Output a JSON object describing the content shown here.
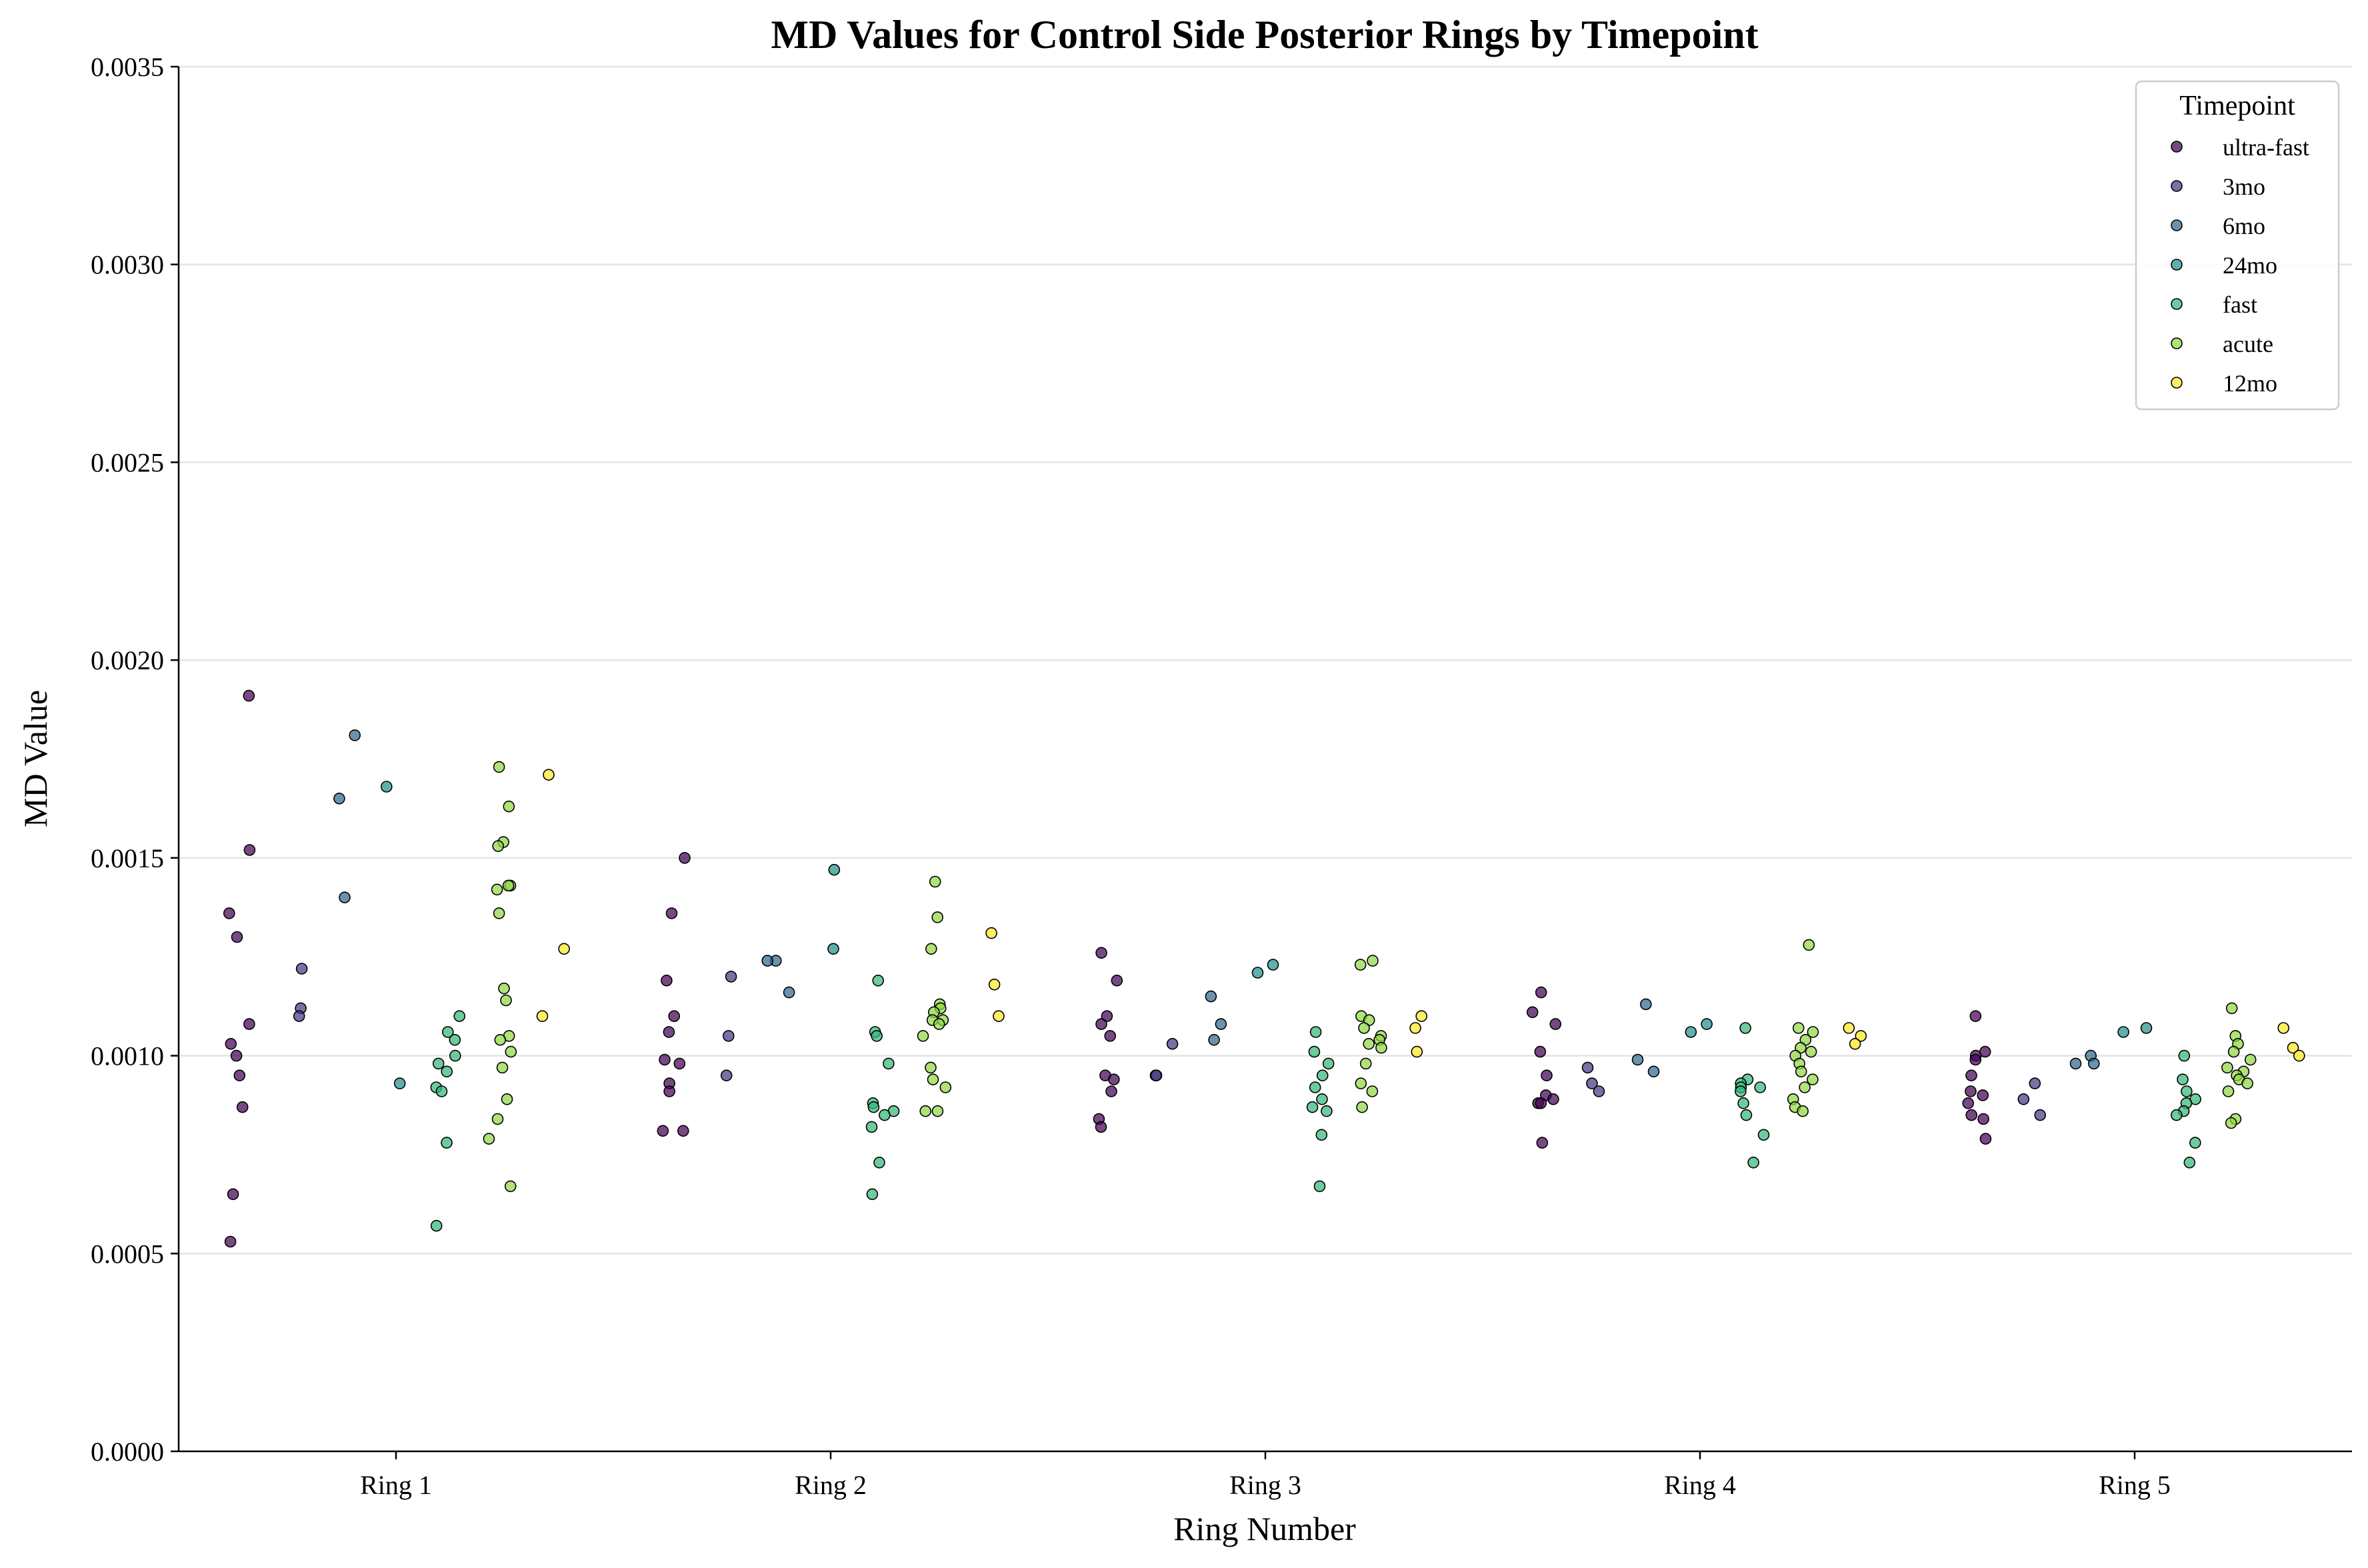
{
  "chart_data": {
    "type": "scatter",
    "title": "MD Values for Control Side Posterior Rings by Timepoint",
    "xlabel": "Ring Number",
    "ylabel": "MD Value",
    "categories": [
      "Ring 1",
      "Ring 2",
      "Ring 3",
      "Ring 4",
      "Ring 5"
    ],
    "ylim": [
      0,
      0.0035
    ],
    "yticks": [
      "0.0000",
      "0.0005",
      "0.0010",
      "0.0015",
      "0.0020",
      "0.0025",
      "0.0030",
      "0.0035"
    ],
    "grid": "horizontal",
    "legend": {
      "title": "Timepoint",
      "placement": "top-right"
    },
    "series": [
      {
        "name": "ultra-fast",
        "color": "#440154",
        "values": [
          [
            0.00191,
            0.00152,
            0.00136,
            0.0013,
            0.00108,
            0.00103,
            0.001,
            0.00095,
            0.00087,
            0.00065,
            0.00053
          ],
          [
            0.0015,
            0.00136,
            0.00119,
            0.0011,
            0.00106,
            0.00099,
            0.00098,
            0.00093,
            0.00091,
            0.00081,
            0.00081
          ],
          [
            0.00126,
            0.00119,
            0.0011,
            0.00108,
            0.00105,
            0.00095,
            0.00094,
            0.00091,
            0.00084,
            0.00082
          ],
          [
            0.00116,
            0.00111,
            0.00108,
            0.00101,
            0.00095,
            0.0009,
            0.00089,
            0.00088,
            0.00088,
            0.00078
          ],
          [
            0.0011,
            0.00101,
            0.001,
            0.00099,
            0.00095,
            0.00091,
            0.0009,
            0.00088,
            0.00085,
            0.00084,
            0.00079
          ]
        ]
      },
      {
        "name": "3mo",
        "color": "#443983",
        "values": [
          [
            0.00122,
            0.00112,
            0.0011
          ],
          [
            0.0012,
            0.00105,
            0.00095
          ],
          [
            0.00103,
            0.00095,
            0.00095
          ],
          [
            0.00097,
            0.00093,
            0.00091
          ],
          [
            0.00093,
            0.00089,
            0.00085
          ]
        ]
      },
      {
        "name": "6mo",
        "color": "#31688e",
        "values": [
          [
            0.00181,
            0.00165,
            0.0014
          ],
          [
            0.00124,
            0.00124,
            0.00116
          ],
          [
            0.00115,
            0.00108,
            0.00104
          ],
          [
            0.00113,
            0.00099,
            0.00096
          ],
          [
            0.001,
            0.00098,
            0.00098
          ]
        ]
      },
      {
        "name": "24mo",
        "color": "#21918c",
        "values": [
          [
            0.00168,
            0.00093
          ],
          [
            0.00147,
            0.00127
          ],
          [
            0.00123,
            0.00121
          ],
          [
            0.00108,
            0.00106
          ],
          [
            0.00107,
            0.00106
          ]
        ]
      },
      {
        "name": "fast",
        "color": "#35b779",
        "values": [
          [
            0.0011,
            0.00106,
            0.00104,
            0.001,
            0.00098,
            0.00096,
            0.00092,
            0.00091,
            0.00078,
            0.00057
          ],
          [
            0.00119,
            0.00106,
            0.00105,
            0.00098,
            0.00088,
            0.00087,
            0.00086,
            0.00085,
            0.00082,
            0.00073,
            0.00065
          ],
          [
            0.00106,
            0.00101,
            0.00098,
            0.00095,
            0.00092,
            0.00089,
            0.00087,
            0.00086,
            0.0008,
            0.00067
          ],
          [
            0.00107,
            0.00094,
            0.00093,
            0.00092,
            0.00092,
            0.00091,
            0.00088,
            0.00085,
            0.0008,
            0.00073
          ],
          [
            0.001,
            0.00094,
            0.00091,
            0.00089,
            0.00088,
            0.00086,
            0.00085,
            0.00078,
            0.00073
          ]
        ]
      },
      {
        "name": "acute",
        "color": "#90d743",
        "values": [
          [
            0.00173,
            0.00163,
            0.00154,
            0.00153,
            0.00143,
            0.00143,
            0.00142,
            0.00136,
            0.00117,
            0.00114,
            0.00105,
            0.00104,
            0.00101,
            0.00097,
            0.00089,
            0.00084,
            0.00079,
            0.00067
          ],
          [
            0.00144,
            0.00135,
            0.00127,
            0.00113,
            0.00112,
            0.00111,
            0.00109,
            0.00109,
            0.00108,
            0.00105,
            0.00097,
            0.00094,
            0.00092,
            0.00086,
            0.00086
          ],
          [
            0.00124,
            0.00123,
            0.0011,
            0.00109,
            0.00107,
            0.00105,
            0.00104,
            0.00103,
            0.00102,
            0.00098,
            0.00093,
            0.00091,
            0.00087
          ],
          [
            0.00128,
            0.00107,
            0.00106,
            0.00104,
            0.00102,
            0.00101,
            0.001,
            0.00098,
            0.00096,
            0.00094,
            0.00092,
            0.00089,
            0.00087,
            0.00086
          ],
          [
            0.00112,
            0.00105,
            0.00103,
            0.00101,
            0.00099,
            0.00097,
            0.00096,
            0.00095,
            0.00094,
            0.00093,
            0.00091,
            0.00084,
            0.00083
          ]
        ]
      },
      {
        "name": "12mo",
        "color": "#fde725",
        "values": [
          [
            0.00171,
            0.00127,
            0.0011
          ],
          [
            0.00131,
            0.00118,
            0.0011
          ],
          [
            0.0011,
            0.00107,
            0.00101
          ],
          [
            0.00107,
            0.00105,
            0.00103
          ],
          [
            0.00107,
            0.00102,
            0.001
          ]
        ]
      }
    ]
  }
}
